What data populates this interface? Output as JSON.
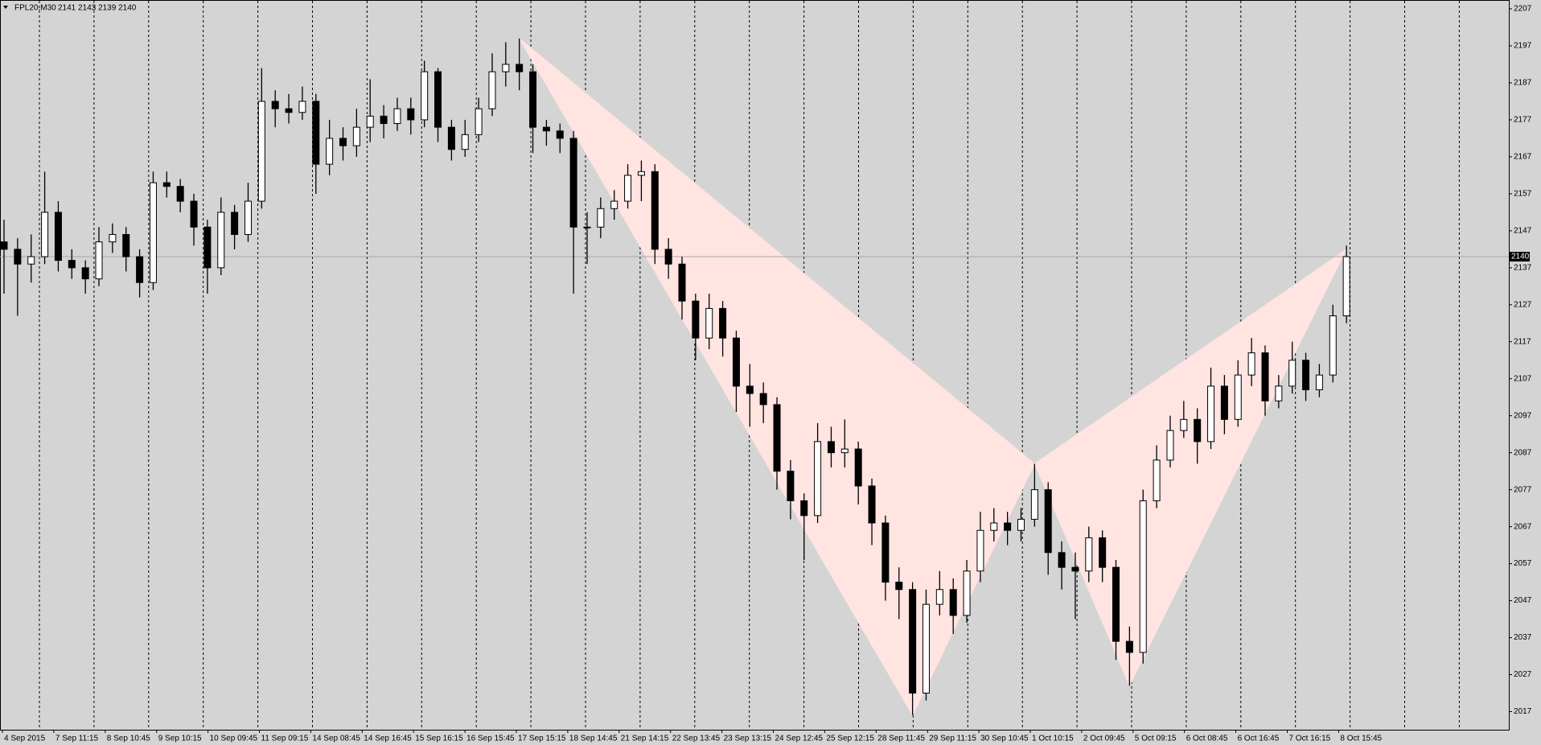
{
  "chart_data": {
    "type": "candlestick",
    "title": "FPL20,M30",
    "ohlc_text": "2141 2143 2139 2140",
    "open": [
      2144,
      2142,
      2138,
      2140,
      2152,
      2139,
      2137,
      2134,
      2144,
      2146,
      2140,
      2133,
      2160,
      2159,
      2155,
      2148,
      2137,
      2152,
      2146,
      2155,
      2182,
      2180,
      2179,
      2182,
      2165,
      2172,
      2170,
      2175,
      2178,
      2176,
      2180,
      2177,
      2190,
      2175,
      2169,
      2173,
      2180,
      2190,
      2192,
      2190,
      2175,
      2174,
      2172,
      2148,
      2148,
      2153,
      2155,
      2162,
      2163,
      2142,
      2138,
      2128,
      2118,
      2126,
      2118,
      2105,
      2103,
      2100,
      2082,
      2074,
      2070,
      2090,
      2087,
      2088,
      2078,
      2068,
      2052,
      2050,
      2022,
      2046,
      2050,
      2043,
      2055,
      2066,
      2068,
      2066,
      2069,
      2077,
      2060,
      2056,
      2055,
      2064,
      2056,
      2036,
      2033,
      2074,
      2085,
      2093,
      2096,
      2090,
      2105,
      2096,
      2108,
      2114,
      2101,
      2105,
      2112,
      2104,
      2108,
      2124
    ],
    "high": [
      2150,
      2145,
      2146,
      2163,
      2155,
      2142,
      2139,
      2148,
      2149,
      2148,
      2142,
      2163,
      2163,
      2161,
      2157,
      2150,
      2156,
      2154,
      2160,
      2191,
      2185,
      2184,
      2186,
      2184,
      2177,
      2175,
      2180,
      2188,
      2181,
      2183,
      2183,
      2193,
      2191,
      2177,
      2177,
      2183,
      2195,
      2198,
      2199,
      2192,
      2177,
      2176,
      2174,
      2152,
      2156,
      2158,
      2165,
      2166,
      2165,
      2145,
      2140,
      2130,
      2130,
      2128,
      2120,
      2111,
      2106,
      2102,
      2085,
      2076,
      2095,
      2094,
      2096,
      2090,
      2080,
      2070,
      2056,
      2052,
      2050,
      2055,
      2053,
      2058,
      2071,
      2072,
      2071,
      2072,
      2084,
      2079,
      2063,
      2060,
      2067,
      2066,
      2058,
      2040,
      2077,
      2089,
      2097,
      2101,
      2099,
      2110,
      2108,
      2112,
      2118,
      2116,
      2108,
      2117,
      2114,
      2111,
      2127,
      2143
    ],
    "low": [
      2130,
      2124,
      2133,
      2138,
      2136,
      2134,
      2130,
      2132,
      2141,
      2136,
      2129,
      2131,
      2156,
      2152,
      2143,
      2130,
      2135,
      2142,
      2144,
      2153,
      2175,
      2176,
      2177,
      2157,
      2162,
      2166,
      2167,
      2171,
      2172,
      2174,
      2173,
      2175,
      2171,
      2166,
      2167,
      2171,
      2178,
      2186,
      2185,
      2168,
      2170,
      2168,
      2130,
      2138,
      2145,
      2150,
      2153,
      2155,
      2138,
      2134,
      2123,
      2112,
      2115,
      2113,
      2098,
      2094,
      2095,
      2077,
      2069,
      2058,
      2068,
      2083,
      2083,
      2073,
      2062,
      2047,
      2042,
      2016,
      2020,
      2043,
      2038,
      2041,
      2052,
      2063,
      2062,
      2063,
      2067,
      2054,
      2050,
      2042,
      2052,
      2052,
      2031,
      2024,
      2030,
      2072,
      2083,
      2091,
      2084,
      2088,
      2092,
      2094,
      2105,
      2097,
      2099,
      2103,
      2101,
      2102,
      2106,
      2122
    ],
    "close": [
      2142,
      2138,
      2140,
      2152,
      2139,
      2137,
      2134,
      2144,
      2146,
      2140,
      2133,
      2160,
      2159,
      2155,
      2148,
      2137,
      2152,
      2146,
      2155,
      2182,
      2180,
      2179,
      2182,
      2165,
      2172,
      2170,
      2175,
      2178,
      2176,
      2180,
      2177,
      2190,
      2175,
      2169,
      2173,
      2180,
      2190,
      2192,
      2190,
      2175,
      2174,
      2172,
      2148,
      2148,
      2153,
      2155,
      2162,
      2163,
      2142,
      2138,
      2128,
      2118,
      2126,
      2118,
      2105,
      2103,
      2100,
      2082,
      2074,
      2070,
      2090,
      2087,
      2088,
      2078,
      2068,
      2052,
      2050,
      2022,
      2046,
      2050,
      2043,
      2055,
      2066,
      2068,
      2066,
      2069,
      2077,
      2060,
      2056,
      2055,
      2064,
      2056,
      2036,
      2033,
      2074,
      2085,
      2093,
      2096,
      2090,
      2105,
      2096,
      2108,
      2114,
      2101,
      2105,
      2112,
      2104,
      2108,
      2124,
      2140
    ],
    "time_labels": [
      "4 Sep 2015",
      "7 Sep 11:15",
      "8 Sep 10:45",
      "9 Sep 10:15",
      "10 Sep 09:45",
      "11 Sep 09:15",
      "14 Sep 08:45",
      "14 Sep 16:45",
      "15 Sep 16:15",
      "16 Sep 15:45",
      "17 Sep 15:15",
      "18 Sep 14:45",
      "21 Sep 14:15",
      "22 Sep 13:45",
      "23 Sep 13:15",
      "24 Sep 12:45",
      "25 Sep 12:15",
      "28 Sep 11:45",
      "29 Sep 11:15",
      "30 Sep 10:45",
      "1 Oct 10:15",
      "2 Oct 09:45",
      "5 Oct 09:15",
      "6 Oct 08:45",
      "6 Oct 16:45",
      "7 Oct 16:15",
      "8 Oct 15:45"
    ],
    "ylim": [
      2012.1,
      2209.4
    ],
    "yticks": [
      2207,
      2197,
      2187,
      2177,
      2167,
      2157,
      2147,
      2137,
      2127,
      2117,
      2107,
      2097,
      2087,
      2077,
      2067,
      2057,
      2047,
      2037,
      2027,
      2017
    ],
    "last_price": 2140,
    "pattern": {
      "color": "#ffe4e1",
      "points": [
        [
          38,
          2199
        ],
        [
          67,
          2016
        ],
        [
          76,
          2084
        ],
        [
          83,
          2024
        ],
        [
          99,
          2142
        ]
      ]
    }
  }
}
